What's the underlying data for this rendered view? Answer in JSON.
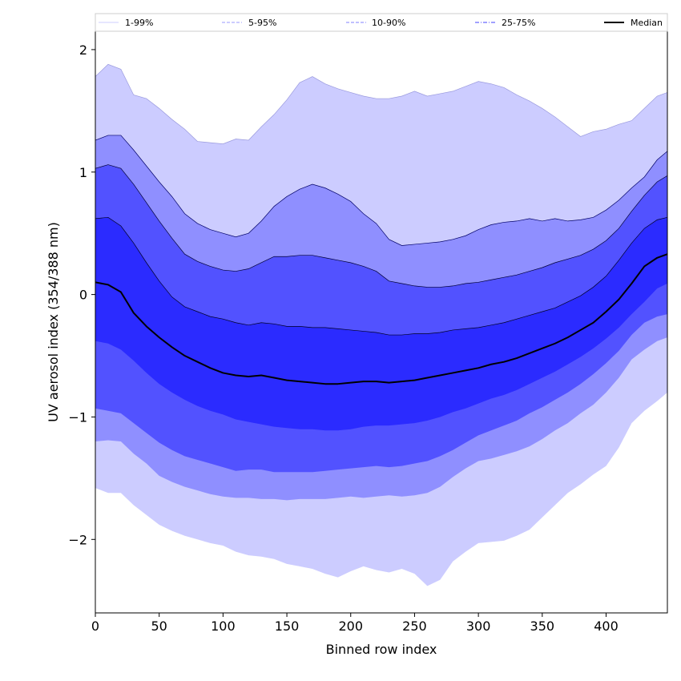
{
  "chart_data": {
    "type": "area",
    "title": "",
    "xlabel": "Binned row index",
    "ylabel": "UV aerosol index (354/388 nm)",
    "xlim": [
      0,
      448
    ],
    "ylim": [
      -2.6,
      2.15
    ],
    "xticks": [
      0,
      50,
      100,
      150,
      200,
      250,
      300,
      350,
      400
    ],
    "yticks": [
      -2,
      -1,
      0,
      1,
      2
    ],
    "ytick_labels": [
      "−2",
      "−1",
      "0",
      "1",
      "2"
    ],
    "grid": false,
    "legend_position": "top",
    "x": [
      0,
      10,
      20,
      30,
      40,
      50,
      60,
      70,
      80,
      90,
      100,
      110,
      120,
      130,
      140,
      150,
      160,
      170,
      180,
      190,
      200,
      210,
      220,
      230,
      240,
      250,
      260,
      270,
      280,
      290,
      300,
      310,
      320,
      330,
      340,
      350,
      360,
      370,
      380,
      390,
      400,
      410,
      420,
      430,
      440,
      448
    ],
    "bands": [
      {
        "name": "1-99%",
        "fill": "#ccccff",
        "edge": "#9999dd",
        "upper": [
          1.78,
          1.88,
          1.84,
          1.63,
          1.6,
          1.52,
          1.43,
          1.35,
          1.25,
          1.24,
          1.23,
          1.27,
          1.26,
          1.37,
          1.47,
          1.59,
          1.73,
          1.78,
          1.72,
          1.68,
          1.65,
          1.62,
          1.6,
          1.6,
          1.62,
          1.66,
          1.62,
          1.64,
          1.66,
          1.7,
          1.74,
          1.72,
          1.69,
          1.63,
          1.58,
          1.52,
          1.45,
          1.37,
          1.29,
          1.33,
          1.35,
          1.39,
          1.42,
          1.52,
          1.62,
          1.65
        ],
        "lower": [
          -1.58,
          -1.62,
          -1.62,
          -1.72,
          -1.8,
          -1.88,
          -1.93,
          -1.97,
          -2.0,
          -2.03,
          -2.05,
          -2.1,
          -2.13,
          -2.14,
          -2.16,
          -2.2,
          -2.22,
          -2.24,
          -2.28,
          -2.31,
          -2.26,
          -2.22,
          -2.25,
          -2.27,
          -2.24,
          -2.28,
          -2.38,
          -2.33,
          -2.18,
          -2.1,
          -2.03,
          -2.02,
          -2.01,
          -1.97,
          -1.92,
          -1.82,
          -1.72,
          -1.62,
          -1.55,
          -1.47,
          -1.4,
          -1.25,
          -1.05,
          -0.95,
          -0.87,
          -0.8
        ]
      },
      {
        "name": "5-95%",
        "fill": "#8f8fff",
        "edge": "#000066",
        "upper": [
          1.26,
          1.3,
          1.3,
          1.18,
          1.05,
          0.92,
          0.8,
          0.66,
          0.58,
          0.53,
          0.5,
          0.47,
          0.5,
          0.6,
          0.72,
          0.8,
          0.86,
          0.9,
          0.87,
          0.82,
          0.76,
          0.66,
          0.58,
          0.45,
          0.4,
          0.41,
          0.42,
          0.43,
          0.45,
          0.48,
          0.53,
          0.57,
          0.59,
          0.6,
          0.62,
          0.6,
          0.62,
          0.6,
          0.61,
          0.63,
          0.69,
          0.77,
          0.87,
          0.96,
          1.1,
          1.17
        ],
        "lower": [
          -1.2,
          -1.19,
          -1.2,
          -1.3,
          -1.38,
          -1.48,
          -1.53,
          -1.57,
          -1.6,
          -1.63,
          -1.65,
          -1.66,
          -1.66,
          -1.67,
          -1.67,
          -1.68,
          -1.67,
          -1.67,
          -1.67,
          -1.66,
          -1.65,
          -1.66,
          -1.65,
          -1.64,
          -1.65,
          -1.64,
          -1.62,
          -1.57,
          -1.49,
          -1.42,
          -1.36,
          -1.34,
          -1.31,
          -1.28,
          -1.24,
          -1.18,
          -1.11,
          -1.05,
          -0.97,
          -0.9,
          -0.8,
          -0.68,
          -0.53,
          -0.45,
          -0.38,
          -0.35
        ]
      },
      {
        "name": "10-90%",
        "fill": "#5252ff",
        "edge": "#000033",
        "upper": [
          1.03,
          1.06,
          1.03,
          0.9,
          0.75,
          0.6,
          0.46,
          0.33,
          0.27,
          0.23,
          0.2,
          0.19,
          0.21,
          0.26,
          0.31,
          0.31,
          0.32,
          0.32,
          0.3,
          0.28,
          0.26,
          0.23,
          0.19,
          0.11,
          0.09,
          0.07,
          0.06,
          0.06,
          0.07,
          0.09,
          0.1,
          0.12,
          0.14,
          0.16,
          0.19,
          0.22,
          0.26,
          0.29,
          0.32,
          0.37,
          0.44,
          0.54,
          0.68,
          0.81,
          0.92,
          0.97
        ],
        "lower": [
          -0.93,
          -0.95,
          -0.97,
          -1.05,
          -1.13,
          -1.21,
          -1.27,
          -1.32,
          -1.35,
          -1.38,
          -1.41,
          -1.44,
          -1.43,
          -1.43,
          -1.45,
          -1.45,
          -1.45,
          -1.45,
          -1.44,
          -1.43,
          -1.42,
          -1.41,
          -1.4,
          -1.41,
          -1.4,
          -1.38,
          -1.36,
          -1.32,
          -1.27,
          -1.21,
          -1.15,
          -1.11,
          -1.07,
          -1.03,
          -0.97,
          -0.92,
          -0.86,
          -0.8,
          -0.73,
          -0.65,
          -0.56,
          -0.46,
          -0.33,
          -0.23,
          -0.18,
          -0.16
        ]
      },
      {
        "name": "25-75%",
        "fill": "#2b2bff",
        "edge": "#000022",
        "upper": [
          0.62,
          0.63,
          0.56,
          0.42,
          0.26,
          0.11,
          -0.02,
          -0.1,
          -0.14,
          -0.18,
          -0.2,
          -0.23,
          -0.25,
          -0.23,
          -0.24,
          -0.26,
          -0.26,
          -0.27,
          -0.27,
          -0.28,
          -0.29,
          -0.3,
          -0.31,
          -0.33,
          -0.33,
          -0.32,
          -0.32,
          -0.31,
          -0.29,
          -0.28,
          -0.27,
          -0.25,
          -0.23,
          -0.2,
          -0.17,
          -0.14,
          -0.11,
          -0.06,
          -0.01,
          0.06,
          0.15,
          0.28,
          0.42,
          0.54,
          0.61,
          0.63
        ],
        "lower": [
          -0.38,
          -0.4,
          -0.45,
          -0.54,
          -0.64,
          -0.73,
          -0.8,
          -0.86,
          -0.91,
          -0.95,
          -0.98,
          -1.02,
          -1.04,
          -1.06,
          -1.08,
          -1.09,
          -1.1,
          -1.1,
          -1.11,
          -1.11,
          -1.1,
          -1.08,
          -1.07,
          -1.07,
          -1.06,
          -1.05,
          -1.03,
          -1.0,
          -0.96,
          -0.93,
          -0.89,
          -0.85,
          -0.82,
          -0.78,
          -0.73,
          -0.68,
          -0.63,
          -0.57,
          -0.51,
          -0.44,
          -0.36,
          -0.27,
          -0.16,
          -0.06,
          0.05,
          0.09
        ]
      }
    ],
    "median": {
      "name": "Median",
      "color": "#000000",
      "values": [
        0.1,
        0.08,
        0.02,
        -0.15,
        -0.26,
        -0.35,
        -0.43,
        -0.5,
        -0.55,
        -0.6,
        -0.64,
        -0.66,
        -0.67,
        -0.66,
        -0.68,
        -0.7,
        -0.71,
        -0.72,
        -0.73,
        -0.73,
        -0.72,
        -0.71,
        -0.71,
        -0.72,
        -0.71,
        -0.7,
        -0.68,
        -0.66,
        -0.64,
        -0.62,
        -0.6,
        -0.57,
        -0.55,
        -0.52,
        -0.48,
        -0.44,
        -0.4,
        -0.35,
        -0.29,
        -0.23,
        -0.14,
        -0.04,
        0.09,
        0.23,
        0.3,
        0.33
      ]
    },
    "legend": [
      {
        "label": "1-99%",
        "color": "#ccccff",
        "style": "solid"
      },
      {
        "label": "5-95%",
        "color": "#9a9aff",
        "style": "dashed"
      },
      {
        "label": "10-90%",
        "color": "#8080ff",
        "style": "dashed"
      },
      {
        "label": "25-75%",
        "color": "#4040ff",
        "style": "dashdot"
      },
      {
        "label": "Median",
        "color": "#000000",
        "style": "solid"
      }
    ]
  }
}
